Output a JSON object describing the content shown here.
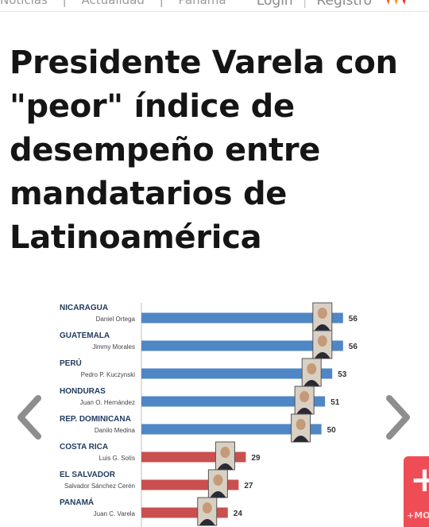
{
  "nav": {
    "crumbs": [
      "Noticias",
      "Actualidad",
      "Panamá"
    ],
    "login_label": "Login",
    "separator": "|",
    "register_label": "Registro",
    "accent_color": "#f26a21"
  },
  "article": {
    "title": "Presidente Varela con \"peor\" índice de desempeño entre mandatarios de Latinoamérica"
  },
  "gallery": {
    "prev_icon": "chevron-left-icon",
    "next_icon": "chevron-right-icon",
    "badge_label": "+MO",
    "badge_color": "#ef4d55"
  },
  "chart_data": {
    "type": "bar",
    "orientation": "horizontal",
    "categories": [
      {
        "country": "NICARAGUA",
        "leader": "Daniel Ortega"
      },
      {
        "country": "GUATEMALA",
        "leader": "Jimmy Morales"
      },
      {
        "country": "PERÚ",
        "leader": "Pedro P. Kuczynski"
      },
      {
        "country": "HONDURAS",
        "leader": "Juan O. Hernández"
      },
      {
        "country": "REP. DOMINICANA",
        "leader": "Danilo Medina"
      },
      {
        "country": "COSTA RICA",
        "leader": "Luis G. Solís"
      },
      {
        "country": "EL SALVADOR",
        "leader": "Salvador Sánchez Cerén"
      },
      {
        "country": "PANAMÁ",
        "leader": "Juan C. Varela"
      }
    ],
    "values": [
      56,
      56,
      53,
      51,
      50,
      29,
      27,
      24
    ],
    "colors": [
      "#4f86c6",
      "#4f86c6",
      "#4f86c6",
      "#4f86c6",
      "#4f86c6",
      "#c9504f",
      "#c9504f",
      "#c9504f"
    ],
    "xlim": [
      0,
      62
    ],
    "grid": false,
    "legend": "none"
  }
}
